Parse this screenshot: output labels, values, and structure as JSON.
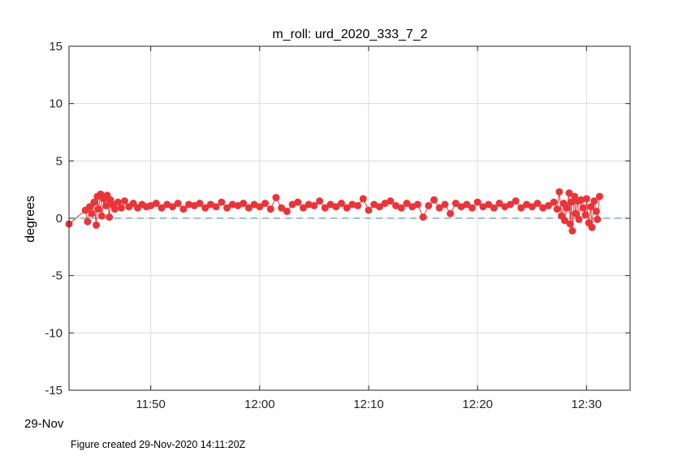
{
  "chart_data": {
    "type": "scatter",
    "title": "m_roll: urd_2020_333_7_2",
    "ylabel": "degrees",
    "xlabel": "",
    "date_label": "29-Nov",
    "x_unit": "minutes after 11:00 on 29-Nov",
    "xlim": [
      42.5,
      94
    ],
    "ylim": [
      -15,
      15
    ],
    "x_ticks": [
      50,
      60,
      70,
      80,
      90
    ],
    "x_tick_labels": [
      "11:50",
      "12:00",
      "12:10",
      "12:20",
      "12:30"
    ],
    "y_ticks": [
      -15,
      -10,
      -5,
      0,
      5,
      10,
      15
    ],
    "y_tick_labels": [
      "-15",
      "-10",
      "-5",
      "0",
      "5",
      "10",
      "15"
    ],
    "grid": true,
    "reference_line": {
      "y": 0,
      "style": "dashed",
      "color": "#3d7fa6"
    },
    "series": [
      {
        "color": "#e8353a",
        "points": [
          [
            42.5,
            -0.5
          ],
          [
            44.0,
            0.7
          ],
          [
            44.2,
            -0.3
          ],
          [
            44.4,
            1.0
          ],
          [
            44.6,
            0.4
          ],
          [
            44.8,
            1.4
          ],
          [
            45.0,
            -0.6
          ],
          [
            45.1,
            1.9
          ],
          [
            45.2,
            0.8
          ],
          [
            45.4,
            2.1
          ],
          [
            45.5,
            0.2
          ],
          [
            45.7,
            1.7
          ],
          [
            45.9,
            1.1
          ],
          [
            46.0,
            2.0
          ],
          [
            46.2,
            0.1
          ],
          [
            46.3,
            1.6
          ],
          [
            46.5,
            1.2
          ],
          [
            46.7,
            0.8
          ],
          [
            47.0,
            1.4
          ],
          [
            47.3,
            0.9
          ],
          [
            47.6,
            1.5
          ],
          [
            48.0,
            1.0
          ],
          [
            48.4,
            1.3
          ],
          [
            48.8,
            0.9
          ],
          [
            49.2,
            1.2
          ],
          [
            49.6,
            1.0
          ],
          [
            50.0,
            1.1
          ],
          [
            50.5,
            1.3
          ],
          [
            51.0,
            0.9
          ],
          [
            51.5,
            1.2
          ],
          [
            52.0,
            1.0
          ],
          [
            52.5,
            1.3
          ],
          [
            53.0,
            0.8
          ],
          [
            53.5,
            1.2
          ],
          [
            54.0,
            1.1
          ],
          [
            54.5,
            1.3
          ],
          [
            55.0,
            0.9
          ],
          [
            55.5,
            1.2
          ],
          [
            56.0,
            1.0
          ],
          [
            56.5,
            1.4
          ],
          [
            57.0,
            0.9
          ],
          [
            57.5,
            1.2
          ],
          [
            58.0,
            1.1
          ],
          [
            58.5,
            1.3
          ],
          [
            59.0,
            0.9
          ],
          [
            59.5,
            1.2
          ],
          [
            60.0,
            1.0
          ],
          [
            60.5,
            1.3
          ],
          [
            61.0,
            0.8
          ],
          [
            61.5,
            1.8
          ],
          [
            62.0,
            0.9
          ],
          [
            62.5,
            0.6
          ],
          [
            63.0,
            1.2
          ],
          [
            63.5,
            1.4
          ],
          [
            64.0,
            0.9
          ],
          [
            64.5,
            1.2
          ],
          [
            65.0,
            1.1
          ],
          [
            65.5,
            1.5
          ],
          [
            66.0,
            0.9
          ],
          [
            66.5,
            1.2
          ],
          [
            67.0,
            1.0
          ],
          [
            67.5,
            1.3
          ],
          [
            68.0,
            0.9
          ],
          [
            68.5,
            1.2
          ],
          [
            69.0,
            1.1
          ],
          [
            69.5,
            1.7
          ],
          [
            70.0,
            0.7
          ],
          [
            70.5,
            1.2
          ],
          [
            71.0,
            1.0
          ],
          [
            71.5,
            1.3
          ],
          [
            72.0,
            1.5
          ],
          [
            72.5,
            1.1
          ],
          [
            73.0,
            0.9
          ],
          [
            73.5,
            1.3
          ],
          [
            74.0,
            1.0
          ],
          [
            74.5,
            1.2
          ],
          [
            75.0,
            0.1
          ],
          [
            75.5,
            1.1
          ],
          [
            76.0,
            1.6
          ],
          [
            76.5,
            0.9
          ],
          [
            77.0,
            1.2
          ],
          [
            77.5,
            0.4
          ],
          [
            78.0,
            1.3
          ],
          [
            78.5,
            1.0
          ],
          [
            79.0,
            1.2
          ],
          [
            79.5,
            0.9
          ],
          [
            80.0,
            1.4
          ],
          [
            80.5,
            1.0
          ],
          [
            81.0,
            1.2
          ],
          [
            81.5,
            0.9
          ],
          [
            82.0,
            1.3
          ],
          [
            82.5,
            1.0
          ],
          [
            83.0,
            1.2
          ],
          [
            83.5,
            1.5
          ],
          [
            84.0,
            0.9
          ],
          [
            84.5,
            1.2
          ],
          [
            85.0,
            1.0
          ],
          [
            85.5,
            1.3
          ],
          [
            86.0,
            0.9
          ],
          [
            86.5,
            1.1
          ],
          [
            87.0,
            1.4
          ],
          [
            87.3,
            0.8
          ],
          [
            87.5,
            2.3
          ],
          [
            87.7,
            0.2
          ],
          [
            87.9,
            1.3
          ],
          [
            88.0,
            -0.2
          ],
          [
            88.2,
            0.9
          ],
          [
            88.4,
            2.2
          ],
          [
            88.5,
            -0.5
          ],
          [
            88.6,
            1.4
          ],
          [
            88.7,
            -1.1
          ],
          [
            88.9,
            1.9
          ],
          [
            89.0,
            0.4
          ],
          [
            89.2,
            1.5
          ],
          [
            89.3,
            -0.1
          ],
          [
            89.5,
            1.6
          ],
          [
            89.7,
            0.9
          ],
          [
            89.9,
            0.3
          ],
          [
            90.0,
            1.7
          ],
          [
            90.2,
            -0.4
          ],
          [
            90.4,
            1.0
          ],
          [
            90.5,
            -0.8
          ],
          [
            90.7,
            1.5
          ],
          [
            90.9,
            0.6
          ],
          [
            91.0,
            -0.1
          ],
          [
            91.2,
            1.9
          ]
        ]
      }
    ]
  },
  "footer": {
    "created_label": "Figure created 29-Nov-2020 14:11:20Z"
  }
}
